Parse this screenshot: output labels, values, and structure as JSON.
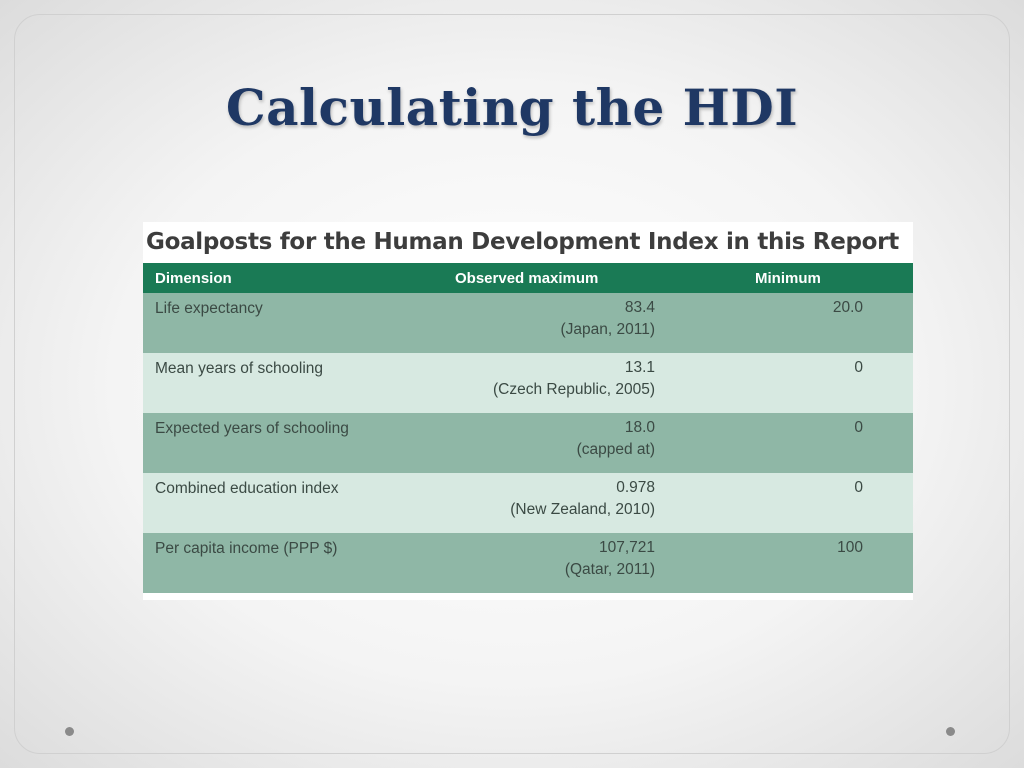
{
  "slide": {
    "title": "Calculating the HDI"
  },
  "table": {
    "title": "Goalposts for the Human Development Index in this Report",
    "headers": {
      "dimension": "Dimension",
      "observed_maximum": "Observed maximum",
      "minimum": "Minimum"
    },
    "rows": [
      {
        "dimension": "Life expectancy",
        "max_value": "83.4",
        "max_note": "(Japan, 2011)",
        "minimum": "20.0"
      },
      {
        "dimension": "Mean years of schooling",
        "max_value": "13.1",
        "max_note": "(Czech Republic, 2005)",
        "minimum": "0"
      },
      {
        "dimension": "Expected years of schooling",
        "max_value": "18.0",
        "max_note": "(capped at)",
        "minimum": "0"
      },
      {
        "dimension": "Combined education index",
        "max_value": "0.978",
        "max_note": "(New Zealand, 2010)",
        "minimum": "0"
      },
      {
        "dimension": "Per capita income (PPP $)",
        "max_value": "107,721",
        "max_note": "(Qatar, 2011)",
        "minimum": "100"
      }
    ]
  },
  "colors": {
    "title": "#1f3864",
    "header_bg": "#1a7a55",
    "row_dark": "#8fb7a6",
    "row_light": "#d7e9e1"
  }
}
